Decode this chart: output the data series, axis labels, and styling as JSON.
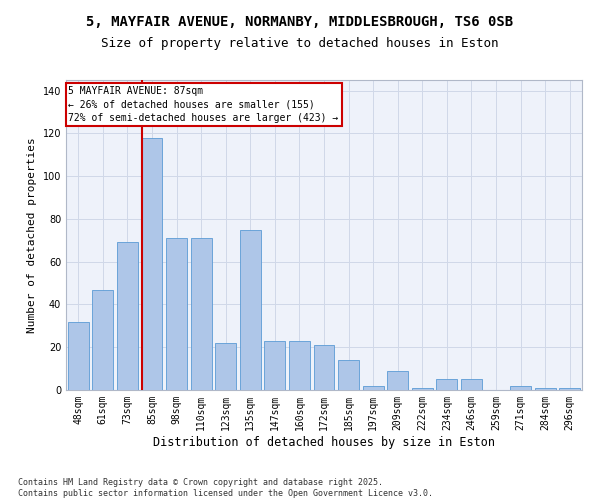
{
  "title1": "5, MAYFAIR AVENUE, NORMANBY, MIDDLESBROUGH, TS6 0SB",
  "title2": "Size of property relative to detached houses in Eston",
  "xlabel": "Distribution of detached houses by size in Eston",
  "ylabel": "Number of detached properties",
  "categories": [
    "48sqm",
    "61sqm",
    "73sqm",
    "85sqm",
    "98sqm",
    "110sqm",
    "123sqm",
    "135sqm",
    "147sqm",
    "160sqm",
    "172sqm",
    "185sqm",
    "197sqm",
    "209sqm",
    "222sqm",
    "234sqm",
    "246sqm",
    "259sqm",
    "271sqm",
    "284sqm",
    "296sqm"
  ],
  "values": [
    32,
    47,
    69,
    118,
    71,
    71,
    22,
    75,
    23,
    23,
    21,
    14,
    2,
    9,
    1,
    5,
    5,
    0,
    2,
    1,
    1
  ],
  "bar_color": "#aec6e8",
  "bar_edge_color": "#5b9bd5",
  "vline_color": "#cc0000",
  "annotation_text": "5 MAYFAIR AVENUE: 87sqm\n← 26% of detached houses are smaller (155)\n72% of semi-detached houses are larger (423) →",
  "annotation_box_color": "#cc0000",
  "ylim": [
    0,
    145
  ],
  "yticks": [
    0,
    20,
    40,
    60,
    80,
    100,
    120,
    140
  ],
  "grid_color": "#d0d8e8",
  "bg_color": "#eef2fa",
  "footer": "Contains HM Land Registry data © Crown copyright and database right 2025.\nContains public sector information licensed under the Open Government Licence v3.0.",
  "title1_fontsize": 10,
  "title2_fontsize": 9,
  "xlabel_fontsize": 8.5,
  "ylabel_fontsize": 8,
  "tick_fontsize": 7,
  "annotation_fontsize": 7,
  "footer_fontsize": 6
}
